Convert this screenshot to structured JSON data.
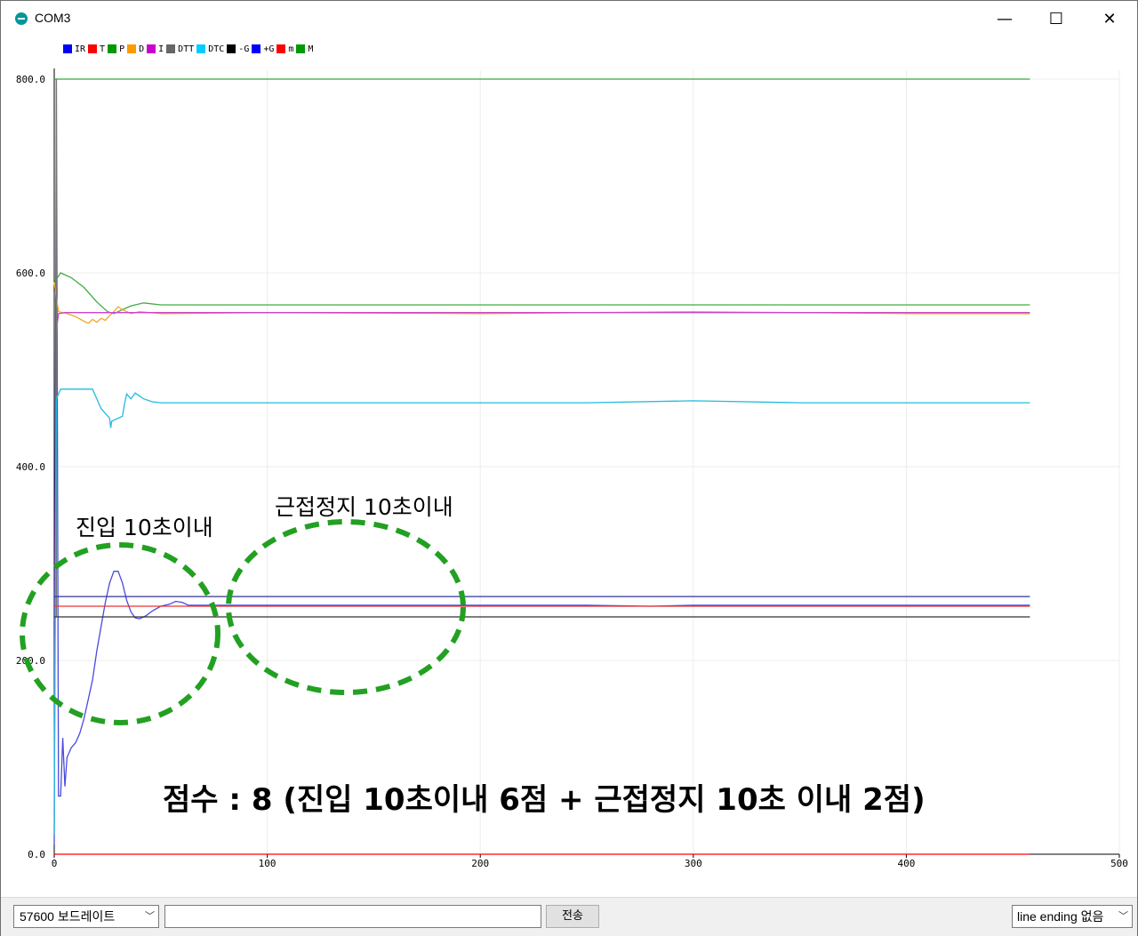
{
  "window": {
    "title": "COM3",
    "icon": "arduino-icon",
    "minimize_glyph": "—",
    "maximize_glyph": "☐",
    "close_glyph": "✕"
  },
  "legend": [
    {
      "label": "IR",
      "color": "#0000ff"
    },
    {
      "label": "T",
      "color": "#ff0000"
    },
    {
      "label": "P",
      "color": "#009900"
    },
    {
      "label": "D",
      "color": "#ff9900"
    },
    {
      "label": "I",
      "color": "#cc00cc"
    },
    {
      "label": "DTT",
      "color": "#666666"
    },
    {
      "label": "DTC",
      "color": "#00ccff"
    },
    {
      "label": "-G",
      "color": "#000000"
    },
    {
      "label": "+G",
      "color": "#0000ff"
    },
    {
      "label": "m",
      "color": "#ff0000"
    },
    {
      "label": "M",
      "color": "#009900"
    }
  ],
  "annotations": {
    "entry": "진입 10초이내",
    "stop": "근접정지 10초이내",
    "score": "점수 : 8 (진입 10초이내 6점 + 근접정지 10초 이내 2점)"
  },
  "chart_data": {
    "type": "line",
    "xlim": [
      0,
      500
    ],
    "ylim": [
      0,
      800
    ],
    "x_ticks": [
      0,
      100,
      200,
      300,
      400,
      500
    ],
    "x_tick_labels": [
      "0",
      "100",
      "200",
      "300",
      "400",
      "500"
    ],
    "y_ticks": [
      0,
      200,
      400,
      600,
      800
    ],
    "y_tick_labels": [
      "0.0",
      "200.0",
      "400.0",
      "600.0",
      "800.0"
    ],
    "grid": true,
    "series": [
      {
        "name": "IR",
        "color": "#4a4adf",
        "points": [
          [
            0,
            10
          ],
          [
            1,
            800
          ],
          [
            2,
            60
          ],
          [
            3,
            60
          ],
          [
            4,
            120
          ],
          [
            5,
            70
          ],
          [
            6,
            100
          ],
          [
            8,
            110
          ],
          [
            10,
            115
          ],
          [
            12,
            125
          ],
          [
            14,
            140
          ],
          [
            16,
            160
          ],
          [
            18,
            180
          ],
          [
            20,
            210
          ],
          [
            22,
            235
          ],
          [
            24,
            260
          ],
          [
            26,
            280
          ],
          [
            28,
            292
          ],
          [
            30,
            292
          ],
          [
            32,
            280
          ],
          [
            34,
            262
          ],
          [
            36,
            250
          ],
          [
            38,
            244
          ],
          [
            40,
            243
          ],
          [
            43,
            246
          ],
          [
            46,
            251
          ],
          [
            50,
            256
          ],
          [
            54,
            258
          ],
          [
            57,
            261
          ],
          [
            60,
            260
          ],
          [
            63,
            257
          ],
          [
            80,
            257
          ],
          [
            120,
            257
          ],
          [
            160,
            257
          ],
          [
            200,
            257
          ],
          [
            250,
            257
          ],
          [
            280,
            256
          ],
          [
            300,
            257
          ],
          [
            350,
            257
          ],
          [
            400,
            257
          ],
          [
            458,
            257
          ]
        ]
      },
      {
        "name": "T",
        "color": "#ff0000",
        "points": [
          [
            0,
            0
          ],
          [
            1,
            0
          ],
          [
            458,
            0
          ]
        ]
      },
      {
        "name": "P",
        "color": "#44aa44",
        "points": [
          [
            0,
            590
          ],
          [
            3,
            600
          ],
          [
            8,
            595
          ],
          [
            14,
            585
          ],
          [
            20,
            570
          ],
          [
            25,
            560
          ],
          [
            28,
            558
          ],
          [
            32,
            562
          ],
          [
            36,
            566
          ],
          [
            42,
            569
          ],
          [
            50,
            567
          ],
          [
            60,
            567
          ],
          [
            100,
            567
          ],
          [
            200,
            567
          ],
          [
            300,
            567
          ],
          [
            400,
            567
          ],
          [
            458,
            567
          ]
        ]
      },
      {
        "name": "D",
        "color": "#f5a623",
        "points": [
          [
            0,
            590
          ],
          [
            2,
            560
          ],
          [
            6,
            558
          ],
          [
            10,
            555
          ],
          [
            14,
            550
          ],
          [
            16,
            548
          ],
          [
            18,
            552
          ],
          [
            20,
            549
          ],
          [
            22,
            553
          ],
          [
            24,
            551
          ],
          [
            26,
            556
          ],
          [
            28,
            560
          ],
          [
            30,
            565
          ],
          [
            32,
            562
          ],
          [
            36,
            558
          ],
          [
            40,
            560
          ],
          [
            50,
            558
          ],
          [
            100,
            559
          ],
          [
            200,
            558
          ],
          [
            300,
            560
          ],
          [
            400,
            558
          ],
          [
            458,
            558
          ]
        ]
      },
      {
        "name": "I",
        "color": "#cc44cc",
        "points": [
          [
            0,
            40
          ],
          [
            1,
            540
          ],
          [
            2,
            558
          ],
          [
            5,
            559
          ],
          [
            100,
            559
          ],
          [
            200,
            559
          ],
          [
            300,
            559
          ],
          [
            400,
            559
          ],
          [
            458,
            559
          ]
        ]
      },
      {
        "name": "DTT",
        "color": "#777777",
        "points": [
          [
            1,
            800
          ],
          [
            1,
            245
          ]
        ]
      },
      {
        "name": "DTC",
        "color": "#22bbdd",
        "points": [
          [
            0,
            20
          ],
          [
            1,
            470
          ],
          [
            3,
            480
          ],
          [
            18,
            480
          ],
          [
            20,
            470
          ],
          [
            22,
            460
          ],
          [
            24,
            455
          ],
          [
            26,
            450
          ],
          [
            26.5,
            440
          ],
          [
            27,
            447
          ],
          [
            30,
            450
          ],
          [
            32,
            452
          ],
          [
            33,
            465
          ],
          [
            34,
            475
          ],
          [
            36,
            470
          ],
          [
            38,
            476
          ],
          [
            42,
            470
          ],
          [
            46,
            467
          ],
          [
            50,
            466
          ],
          [
            60,
            466
          ],
          [
            100,
            466
          ],
          [
            150,
            466
          ],
          [
            200,
            466
          ],
          [
            250,
            466
          ],
          [
            300,
            468
          ],
          [
            350,
            466
          ],
          [
            400,
            466
          ],
          [
            458,
            466
          ]
        ]
      },
      {
        "name": "-G",
        "color": "#333333",
        "points": [
          [
            0,
            245
          ],
          [
            458,
            245
          ]
        ]
      },
      {
        "name": "+G",
        "color": "#333399",
        "points": [
          [
            0,
            266
          ],
          [
            458,
            266
          ]
        ]
      },
      {
        "name": "m",
        "color": "#ee3333",
        "points": [
          [
            0,
            256
          ],
          [
            458,
            256
          ]
        ]
      },
      {
        "name": "M",
        "color": "#33aa33",
        "points": [
          [
            0,
            800
          ],
          [
            458,
            800
          ]
        ]
      }
    ]
  },
  "controls": {
    "baud": "57600 보드레이트",
    "input_value": "",
    "send": "전송",
    "line_ending": "line ending 없음"
  }
}
